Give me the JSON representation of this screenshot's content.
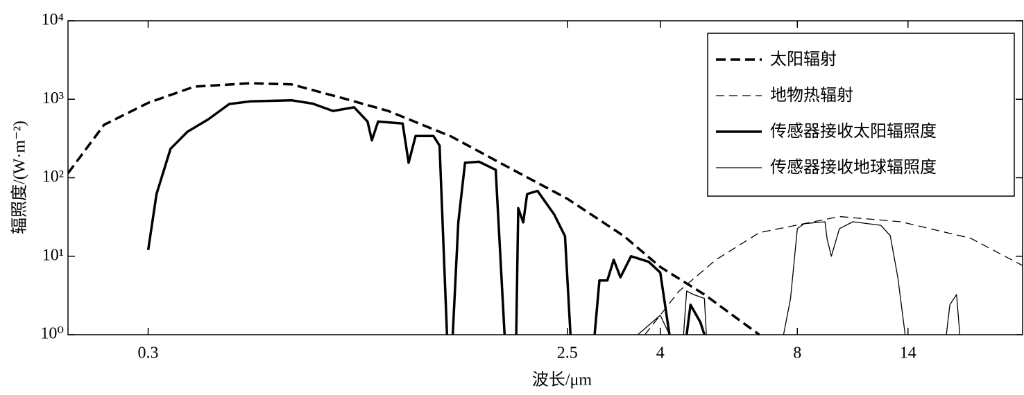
{
  "chart_data": {
    "type": "line",
    "xlabel": "波长/μm",
    "ylabel": "辐照度/(W·m⁻²)",
    "xscale": "log",
    "yscale": "log",
    "xlim": [
      0.2,
      25
    ],
    "ylim": [
      1,
      10000
    ],
    "xticks": [
      0.3,
      2.5,
      4,
      8,
      14
    ],
    "yticks": [
      {
        "value": 1,
        "label": "10⁰"
      },
      {
        "value": 10,
        "label": "10¹"
      },
      {
        "value": 100,
        "label": "10²"
      },
      {
        "value": 1000,
        "label": "10³"
      },
      {
        "value": 10000,
        "label": "10⁴"
      }
    ],
    "legend": "upper right",
    "series": [
      {
        "name": "太阳辐射",
        "color": "#000000",
        "line_style": "dashed",
        "line_weight": "bold",
        "x": [
          0.2,
          0.24,
          0.3,
          0.379,
          0.503,
          0.619,
          0.82,
          1.01,
          1.39,
          1.9,
          2.5,
          3.33,
          4,
          5.0,
          6.6
        ],
        "values": [
          114,
          473,
          900,
          1450,
          1600,
          1550,
          1000,
          710,
          335,
          126,
          54,
          18,
          7.3,
          3.25,
          1
        ]
      },
      {
        "name": "地物热辐射",
        "color": "#000000",
        "line_style": "dashed",
        "line_weight": "thin",
        "x": [
          3.7,
          4.4,
          5.3,
          6.6,
          9.9,
          13.5,
          19.2,
          25
        ],
        "values": [
          1,
          3.6,
          9,
          20,
          32,
          27.5,
          17,
          7.6
        ]
      },
      {
        "name": "传感器接收太阳辐照度",
        "color": "#000000",
        "line_style": "solid",
        "line_weight": "bold",
        "x": [
          0.3,
          0.313,
          0.336,
          0.366,
          0.407,
          0.452,
          0.503,
          0.619,
          0.689,
          0.764,
          0.85,
          0.91,
          0.93,
          0.96,
          1.087,
          1.12,
          1.16,
          1.27,
          1.31,
          1.36,
          null,
          1.4,
          1.44,
          1.49,
          1.6,
          1.74,
          1.82,
          null,
          1.93,
          1.95,
          2.0,
          2.04,
          2.15,
          2.34,
          2.47,
          2.54,
          null,
          2.87,
          2.94,
          3.06,
          3.16,
          3.27,
          3.45,
          3.77,
          4,
          4.19,
          null,
          4.57,
          4.66,
          4.9,
          5.0
        ],
        "values": [
          12,
          62,
          234,
          386,
          557,
          870,
          940,
          970,
          880,
          710,
          790,
          520,
          300,
          520,
          490,
          155,
          340,
          340,
          257,
          1,
          null,
          1,
          27,
          155,
          160,
          126,
          1,
          null,
          1,
          41,
          27,
          62,
          68,
          34,
          18,
          1,
          null,
          1,
          4.9,
          4.9,
          9,
          5.4,
          10,
          8.5,
          6.2,
          1,
          null,
          1,
          2.4,
          1.44,
          1
        ]
      },
      {
        "name": "传感器接收地球辐照度",
        "color": "#000000",
        "line_style": "solid",
        "line_weight": "thin",
        "x": [
          3.57,
          4,
          4.19,
          null,
          4.5,
          4.57,
          4.73,
          5.0,
          5.05,
          null,
          7.46,
          7.73,
          8.0,
          8.28,
          9.2,
          9.3,
          9.5,
          9.9,
          10.6,
          12.2,
          12.8,
          13.3,
          13.8,
          null,
          17.0,
          17.3,
          17.9,
          18.2
        ],
        "values": [
          1,
          1.77,
          1,
          null,
          1,
          3.6,
          3.25,
          2.9,
          1,
          null,
          1,
          2.9,
          22.5,
          26,
          27.5,
          16.6,
          10,
          22.5,
          27.5,
          24.8,
          18.3,
          5.4,
          1,
          null,
          1,
          2.4,
          3.25,
          1
        ]
      }
    ]
  }
}
